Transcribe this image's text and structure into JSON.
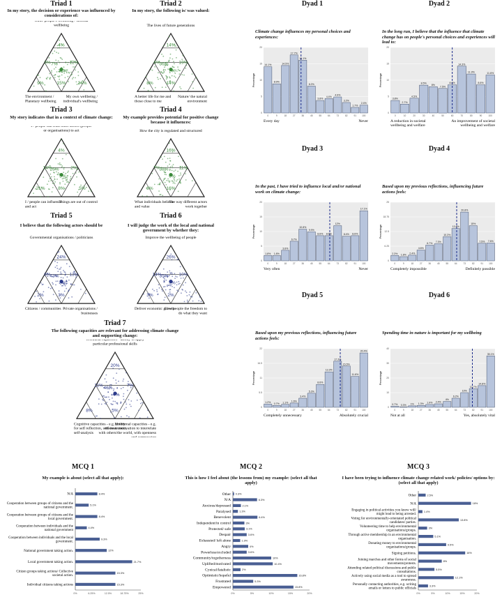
{
  "chart_data": [
    {
      "type": "ternary",
      "panel": "Triad 1",
      "title": "Triad 1",
      "subtitle": "In my story, the decision or experience was influenced by considerations of:",
      "top_label": "Other people's wellbeing / societal wellbeing",
      "left_label": "The environment / Planetary wellbeing",
      "right_label": "My own wellbeing / individual's wellbeing",
      "regions": [
        "4%",
        "12%",
        "3%",
        "7%",
        "31%",
        "9%",
        "15%",
        "24%"
      ],
      "color": "#3a8a3a"
    },
    {
      "type": "ternary",
      "panel": "Triad 2",
      "title": "Triad 2",
      "subtitle": "In my story, the following is/ was valued:",
      "top_label": "The lives of future generations",
      "left_label": "A better life for me and those close to me",
      "right_label": "Nature/ the natural environment",
      "regions": [
        "14%",
        "19%",
        "4%",
        "36%",
        "7%",
        "8%",
        "14%"
      ],
      "color": "#3a8a3a"
    },
    {
      "type": "ternary",
      "panel": "Triad 3",
      "title": "Triad 3",
      "subtitle": "My story indicates that in a context of climate change:",
      "top_label": "I / people can trust other actors (people or organisations) to act",
      "left_label": "I / people can influence and act",
      "right_label": "Things are out of control",
      "regions": [
        "4%",
        "2%",
        "14%",
        "26%",
        "3%",
        "21%",
        "8%",
        "5%"
      ],
      "color": "#3a8a3a"
    },
    {
      "type": "ternary",
      "panel": "Triad 4",
      "title": "Triad 4",
      "subtitle": "My example provides potential for positive change because it influences:",
      "top_label": "How the city is regulated and structured",
      "left_label": "What individuals believe and value",
      "right_label": "The way different actors work together",
      "regions": [
        "16%",
        "11%",
        "7%",
        "38%",
        "6%",
        "8%",
        "16%"
      ],
      "color": "#3a8a3a"
    },
    {
      "type": "ternary",
      "panel": "Triad 5",
      "title": "Triad 5",
      "subtitle": "I believe that the following actors should be",
      "top_label": "Governmental organisations / politicians",
      "left_label": "Citizens / communities",
      "right_label": "Private organisations / businesses",
      "regions": [
        "24%",
        "13%",
        "8%",
        "43%",
        "3%",
        "2%",
        "3%"
      ],
      "color": "#2b3a8a"
    },
    {
      "type": "ternary",
      "panel": "Triad 6",
      "title": "Triad 6",
      "subtitle": "I will judge the work of the local and national government by whether they:",
      "top_label": "Improve the wellbeing of people",
      "left_label": "Deliver economic growth",
      "right_label": "Give people the freedom to do what they want",
      "regions": [
        "26%",
        "10%",
        "14%",
        "35%",
        "5%",
        "3%",
        "2%"
      ],
      "color": "#2b3a8a"
    },
    {
      "type": "ternary",
      "panel": "Triad 7",
      "title": "Triad 7",
      "subtitle": "The following capacities are relevant for addressing climate change and supporting change:",
      "top_label": "Technical capacities - ability to apply particular professional skills",
      "left_label": "Cognitive capacities - e.g. ability for self reflection, self-awareness, self-analysis",
      "right_label": "Emotional capacities - e.g. intrinsic motivation to interrelate with others/the world, with openness and compassion",
      "regions": [
        "20%",
        "7%",
        "11%",
        "46%",
        "4%",
        "8%",
        "5%"
      ],
      "color": "#2b3a8a"
    },
    {
      "type": "bar",
      "panel": "Dyad 1",
      "title": "Dyad 1",
      "subtitle": "Climate change influences my personal choices and experiences:",
      "ylabel": "Percentage",
      "left_label": "Every day",
      "right_label": "Never",
      "values": [
        14.1,
        8.9,
        14.5,
        17.7,
        16.1,
        8.2,
        3.8,
        4.4,
        4.9,
        3.2,
        1.7,
        2.4
      ],
      "ylim": [
        0,
        20
      ],
      "mean_bin": 4.3
    },
    {
      "type": "bar",
      "panel": "Dyad 2",
      "title": "Dyad 2",
      "subtitle": "In the long run, I believe that the influence that climate change has on people's personal choices and experiences will lead to:",
      "ylabel": "Percentage",
      "left_label": "A reduction in societal wellbeing and welfare",
      "right_label": "An improvement of societal wellbeing and welfare",
      "values": [
        3.8,
        2.7,
        4.5,
        8.5,
        8,
        7.5,
        8.6,
        14.3,
        11.9,
        8.6,
        11.6
      ],
      "ylim": [
        0,
        20
      ],
      "mean_bin": 6.5
    },
    {
      "type": "bar",
      "panel": "Dyad 3",
      "title": "Dyad 3",
      "subtitle": "In the past, I have tried to influence local and/or national work on climate change:",
      "ylabel": "Percentage",
      "left_label": "Very often",
      "right_label": "Never",
      "values": [
        1.8,
        1.8,
        3.6,
        6.7,
        10.8,
        9.9,
        8.6,
        8.6,
        12,
        8.4,
        8.6,
        17.1
      ],
      "ylim": [
        0,
        20
      ],
      "mean_bin": 7.6
    },
    {
      "type": "bar",
      "panel": "Dyad 4",
      "title": "Dyad 4",
      "subtitle": "Based upon my previous reflections, influencing future actions feels:",
      "ylabel": "Percentage",
      "left_label": "Completely impossible",
      "right_label": "Definitely possible",
      "values": [
        2.3,
        1.8,
        2.4,
        4.6,
        6.7,
        7.3,
        10.3,
        13.8,
        20.8,
        15,
        7.5,
        7.6
      ],
      "ylim": [
        0,
        25
      ],
      "mean_bin": 7.6
    },
    {
      "type": "bar",
      "panel": "Dyad 5",
      "title": "Dyad 5",
      "subtitle": "Based upon my previous reflections, influencing future actions feels:",
      "ylabel": "Percentage",
      "left_label": "Completely unnecessary",
      "right_label": "Absolutely crucial",
      "values": [
        1.2,
        0.7,
        1.1,
        1.6,
        3.4,
        5.3,
        8.6,
        13.3,
        17.3,
        15.5,
        11.6,
        20.4
      ],
      "ylim": [
        0,
        22
      ],
      "mean_bin": 8.8
    },
    {
      "type": "bar",
      "panel": "Dyad 6",
      "title": "Dyad 6",
      "subtitle": "Spending time in nature is important for my wellbeing",
      "ylabel": "Percentage",
      "left_label": "Not at all",
      "right_label": "Yes, absolutely vital",
      "values": [
        0.7,
        0.3,
        1,
        1.3,
        1.9,
        2.4,
        4,
        6.2,
        10,
        12.7,
        14.8,
        35.1
      ],
      "ylim": [
        0,
        40
      ],
      "mean_bin": 9.4
    },
    {
      "type": "bar_horizontal",
      "panel": "MCQ 1",
      "title": "MCQ 1",
      "subtitle": "My example is about (select all that apply):",
      "categories": [
        "N/A",
        "Cooperation between groups of citizens and the national government.",
        "Cooperation between groups of citizens and the local government.",
        "Cooperation between individuals and the national government",
        "Cooperation between individuals and the local government.",
        "National government taking action.",
        "Local government taking action.",
        "Citizen groups taking actions/ Collective societal action.",
        "Individual citizens taking actions"
      ],
      "values": [
        8.4,
        5.1,
        8.4,
        4.4,
        9.3,
        12,
        21.7,
        15.3,
        15.3
      ],
      "xlim": [
        0,
        25
      ]
    },
    {
      "type": "bar_horizontal",
      "panel": "MCQ 2",
      "title": "MCQ 2",
      "subtitle": "This is how I feel about (the lessons from) my example: (select all that apply)",
      "categories": [
        "Other",
        "N/A",
        "Anxious/depressed",
        "Paralysed",
        "Benevolent",
        "Independent/in control",
        "Protected/ safe",
        "Despair",
        "Exhausted/ left alone",
        "Angry",
        "Powerless/excluded",
        "Community/togetherness",
        "Uplifted/motivated",
        "Cynical/fatalistic",
        "Optimistic/hopeful",
        "Frustrated",
        "Empowered"
      ],
      "values": [
        0.3,
        6.3,
        2.1,
        1.3,
        6.4,
        3,
        3.1,
        3.6,
        1.9,
        4,
        3.6,
        10,
        10.4,
        2,
        16.8,
        5.3,
        15.8
      ],
      "xlim": [
        0,
        20
      ]
    },
    {
      "type": "bar_horizontal",
      "panel": "MCQ 3",
      "title": "MCQ 3",
      "subtitle": "I have been trying to influence climate change related work/ policies/ options by: (select all that apply)",
      "categories": [
        "Other",
        "N/A",
        "Engaging in political activities you know will/ might lead to being arrested.",
        "Voting for environmentally-orientated political candidates/ parties.",
        "Volunteering time to help environmental organisations/groups.",
        "Through active membership in an environmental organisation.",
        "Donating money to environmental organisations/groups.",
        "Signing petitions.",
        "Joining marches and other forms of social movements/protests.",
        "Attending related political discussions and public consultations.",
        "Actively using social media as a tool to spread awareness.",
        "Personally contacting authorities, e.g. writing emails or letters to public officials"
      ],
      "values": [
        2.5,
        18,
        1.4,
        13.8,
        3,
        5.1,
        9.5,
        16,
        8,
        5.5,
        12.1,
        3.3
      ],
      "xlim": [
        0,
        20
      ]
    }
  ]
}
